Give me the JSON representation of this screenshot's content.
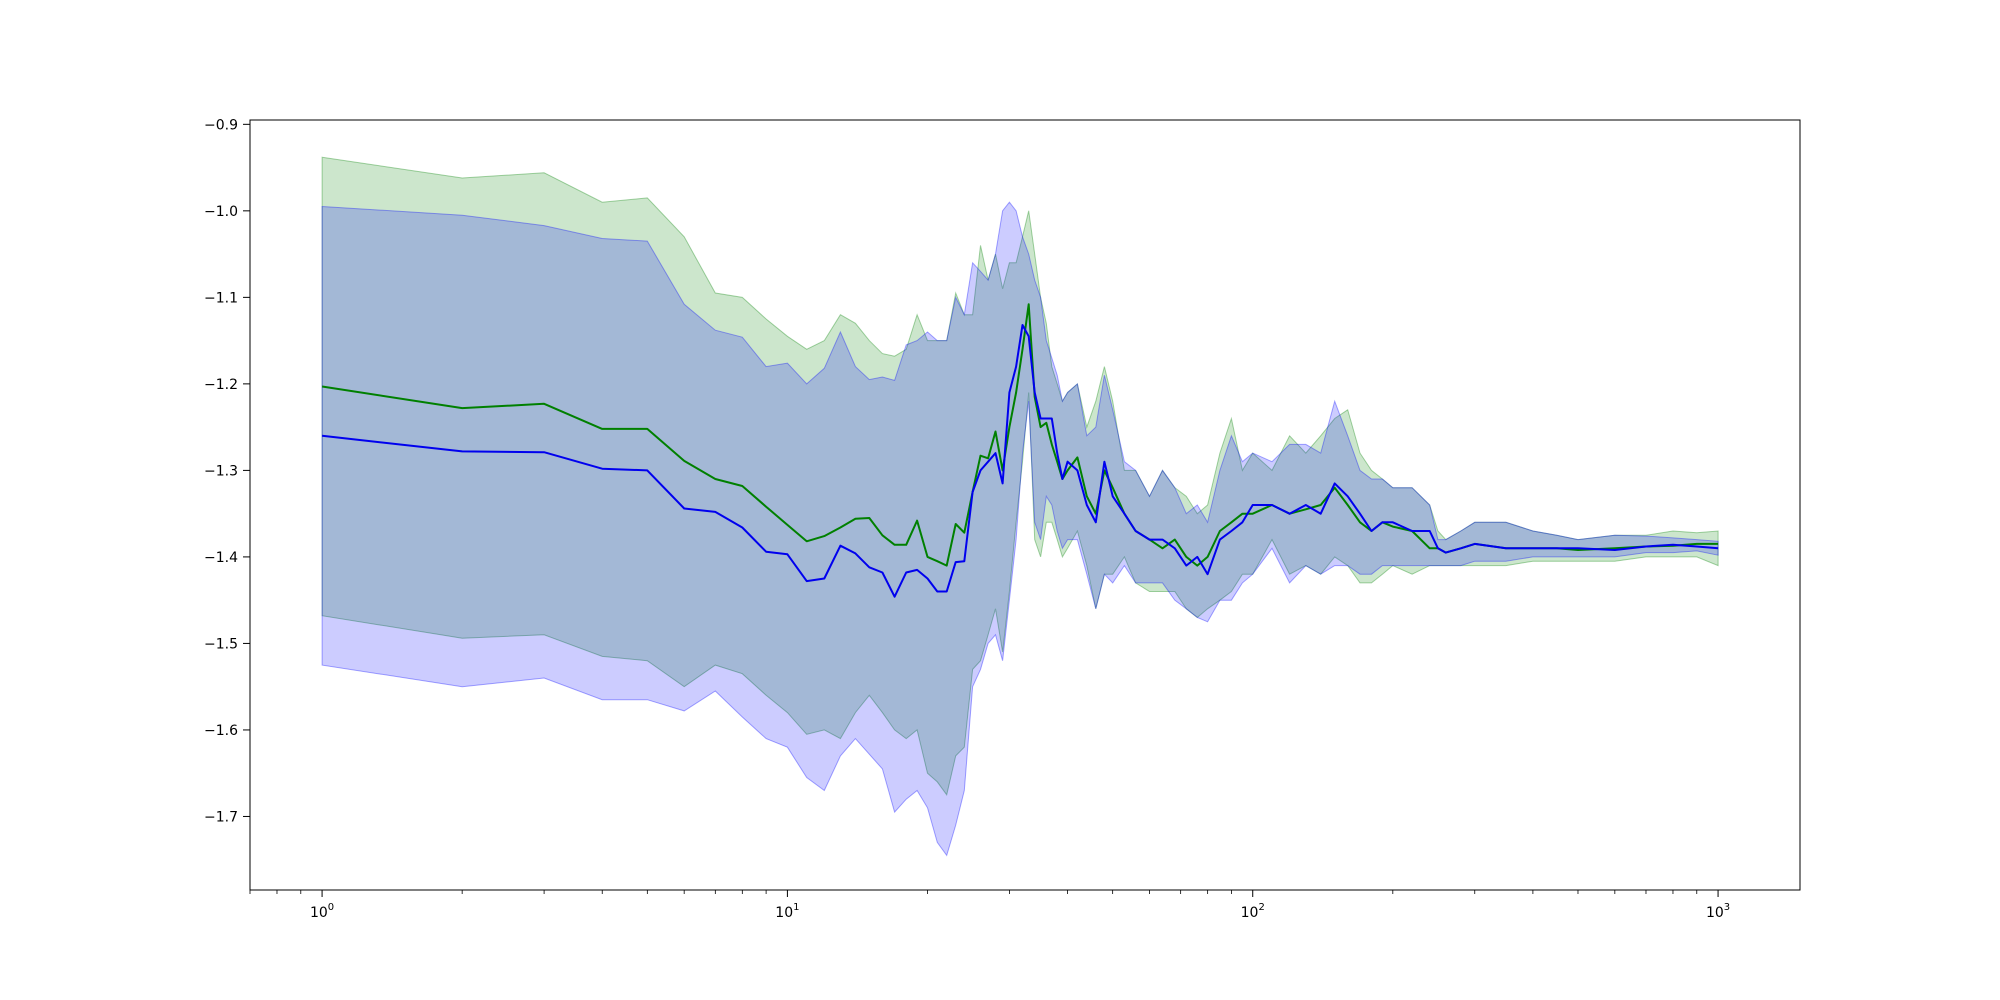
{
  "chart_data": {
    "type": "line",
    "title": "",
    "xlabel": "",
    "ylabel": "",
    "xscale": "log",
    "xlim": [
      0.7,
      1500
    ],
    "ylim": [
      -1.785,
      -0.895
    ],
    "grid": false,
    "legend": "none",
    "x_ticks": [
      {
        "value": 1,
        "base": "10",
        "exp": "0"
      },
      {
        "value": 10,
        "base": "10",
        "exp": "1"
      },
      {
        "value": 100,
        "base": "10",
        "exp": "2"
      },
      {
        "value": 1000,
        "base": "10",
        "exp": "3"
      }
    ],
    "y_ticks": [
      {
        "value": -0.9,
        "label": "−0.9"
      },
      {
        "value": -1.0,
        "label": "−1.0"
      },
      {
        "value": -1.1,
        "label": "−1.1"
      },
      {
        "value": -1.2,
        "label": "−1.2"
      },
      {
        "value": -1.3,
        "label": "−1.3"
      },
      {
        "value": -1.4,
        "label": "−1.4"
      },
      {
        "value": -1.5,
        "label": "−1.5"
      },
      {
        "value": -1.6,
        "label": "−1.6"
      },
      {
        "value": -1.7,
        "label": "−1.7"
      }
    ],
    "series": [
      {
        "color": "#008000",
        "band_color": "#008000",
        "band_opacity": 0.2,
        "x": [
          1,
          2,
          3,
          4,
          5,
          6,
          7,
          8,
          9,
          10,
          11,
          12,
          13,
          14,
          15,
          16,
          17,
          18,
          19,
          20,
          21,
          22,
          23,
          24,
          25,
          26,
          27,
          28,
          29,
          30,
          31,
          32,
          33,
          34,
          35,
          36,
          37,
          38,
          39,
          40,
          42,
          44,
          46,
          48,
          50,
          53,
          56,
          60,
          64,
          68,
          72,
          76,
          80,
          85,
          90,
          95,
          100,
          110,
          120,
          130,
          140,
          150,
          160,
          170,
          180,
          190,
          200,
          220,
          240,
          250,
          260,
          280,
          300,
          350,
          400,
          450,
          500,
          600,
          700,
          800,
          900,
          1000
        ],
        "y": [
          -1.203,
          -1.228,
          -1.223,
          -1.252,
          -1.252,
          -1.289,
          -1.31,
          -1.318,
          -1.342,
          -1.363,
          -1.382,
          -1.376,
          -1.366,
          -1.356,
          -1.355,
          -1.375,
          -1.386,
          -1.386,
          -1.358,
          -1.4,
          -1.405,
          -1.41,
          -1.362,
          -1.372,
          -1.325,
          -1.283,
          -1.286,
          -1.255,
          -1.3,
          -1.25,
          -1.21,
          -1.16,
          -1.108,
          -1.215,
          -1.25,
          -1.245,
          -1.27,
          -1.29,
          -1.31,
          -1.3,
          -1.285,
          -1.33,
          -1.35,
          -1.3,
          -1.32,
          -1.35,
          -1.37,
          -1.38,
          -1.39,
          -1.38,
          -1.4,
          -1.41,
          -1.4,
          -1.37,
          -1.36,
          -1.35,
          -1.35,
          -1.34,
          -1.35,
          -1.345,
          -1.34,
          -1.32,
          -1.34,
          -1.36,
          -1.37,
          -1.36,
          -1.365,
          -1.37,
          -1.39,
          -1.39,
          -1.395,
          -1.39,
          -1.385,
          -1.39,
          -1.39,
          -1.39,
          -1.392,
          -1.39,
          -1.388,
          -1.387,
          -1.385,
          -1.385
        ],
        "upper": [
          -0.938,
          -0.962,
          -0.956,
          -0.99,
          -0.985,
          -1.03,
          -1.095,
          -1.1,
          -1.125,
          -1.145,
          -1.16,
          -1.15,
          -1.12,
          -1.13,
          -1.15,
          -1.165,
          -1.168,
          -1.16,
          -1.12,
          -1.15,
          -1.15,
          -1.15,
          -1.095,
          -1.12,
          -1.12,
          -1.04,
          -1.08,
          -1.05,
          -1.09,
          -1.06,
          -1.06,
          -1.03,
          -1.0,
          -1.05,
          -1.1,
          -1.13,
          -1.18,
          -1.2,
          -1.22,
          -1.21,
          -1.2,
          -1.25,
          -1.22,
          -1.18,
          -1.22,
          -1.3,
          -1.3,
          -1.33,
          -1.3,
          -1.32,
          -1.33,
          -1.35,
          -1.34,
          -1.28,
          -1.24,
          -1.3,
          -1.28,
          -1.3,
          -1.26,
          -1.28,
          -1.26,
          -1.24,
          -1.23,
          -1.28,
          -1.3,
          -1.31,
          -1.32,
          -1.32,
          -1.34,
          -1.37,
          -1.38,
          -1.37,
          -1.36,
          -1.36,
          -1.37,
          -1.375,
          -1.38,
          -1.375,
          -1.375,
          -1.37,
          -1.372,
          -1.37
        ],
        "lower": [
          -1.468,
          -1.494,
          -1.49,
          -1.515,
          -1.52,
          -1.55,
          -1.525,
          -1.535,
          -1.56,
          -1.58,
          -1.605,
          -1.6,
          -1.61,
          -1.58,
          -1.56,
          -1.58,
          -1.6,
          -1.61,
          -1.6,
          -1.65,
          -1.66,
          -1.675,
          -1.63,
          -1.62,
          -1.53,
          -1.52,
          -1.49,
          -1.46,
          -1.51,
          -1.44,
          -1.36,
          -1.29,
          -1.21,
          -1.38,
          -1.4,
          -1.36,
          -1.36,
          -1.38,
          -1.4,
          -1.39,
          -1.37,
          -1.41,
          -1.46,
          -1.42,
          -1.42,
          -1.4,
          -1.43,
          -1.44,
          -1.44,
          -1.44,
          -1.46,
          -1.47,
          -1.46,
          -1.45,
          -1.44,
          -1.42,
          -1.42,
          -1.38,
          -1.42,
          -1.41,
          -1.42,
          -1.4,
          -1.41,
          -1.43,
          -1.43,
          -1.42,
          -1.41,
          -1.42,
          -1.41,
          -1.41,
          -1.41,
          -1.41,
          -1.41,
          -1.41,
          -1.405,
          -1.405,
          -1.405,
          -1.405,
          -1.4,
          -1.4,
          -1.4,
          -1.41
        ]
      },
      {
        "color": "#0000ee",
        "band_color": "#0000ff",
        "band_opacity": 0.2,
        "x": [
          1,
          2,
          3,
          4,
          5,
          6,
          7,
          8,
          9,
          10,
          11,
          12,
          13,
          14,
          15,
          16,
          17,
          18,
          19,
          20,
          21,
          22,
          23,
          24,
          25,
          26,
          27,
          28,
          29,
          30,
          31,
          32,
          33,
          34,
          35,
          36,
          37,
          38,
          39,
          40,
          42,
          44,
          46,
          48,
          50,
          53,
          56,
          60,
          64,
          68,
          72,
          76,
          80,
          85,
          90,
          95,
          100,
          110,
          120,
          130,
          140,
          150,
          160,
          170,
          180,
          190,
          200,
          220,
          240,
          250,
          260,
          280,
          300,
          350,
          400,
          450,
          500,
          600,
          700,
          800,
          900,
          1000
        ],
        "y": [
          -1.26,
          -1.278,
          -1.279,
          -1.298,
          -1.3,
          -1.344,
          -1.348,
          -1.366,
          -1.394,
          -1.397,
          -1.428,
          -1.425,
          -1.387,
          -1.396,
          -1.412,
          -1.418,
          -1.446,
          -1.418,
          -1.415,
          -1.425,
          -1.44,
          -1.44,
          -1.406,
          -1.405,
          -1.325,
          -1.3,
          -1.29,
          -1.28,
          -1.315,
          -1.21,
          -1.18,
          -1.132,
          -1.145,
          -1.21,
          -1.24,
          -1.24,
          -1.24,
          -1.28,
          -1.31,
          -1.29,
          -1.3,
          -1.34,
          -1.36,
          -1.29,
          -1.33,
          -1.35,
          -1.37,
          -1.38,
          -1.38,
          -1.39,
          -1.41,
          -1.4,
          -1.42,
          -1.38,
          -1.37,
          -1.36,
          -1.34,
          -1.34,
          -1.35,
          -1.34,
          -1.35,
          -1.315,
          -1.33,
          -1.35,
          -1.37,
          -1.36,
          -1.36,
          -1.37,
          -1.37,
          -1.39,
          -1.395,
          -1.39,
          -1.385,
          -1.39,
          -1.39,
          -1.39,
          -1.39,
          -1.392,
          -1.388,
          -1.386,
          -1.388,
          -1.39
        ],
        "upper": [
          -0.995,
          -1.005,
          -1.017,
          -1.032,
          -1.035,
          -1.108,
          -1.138,
          -1.146,
          -1.18,
          -1.176,
          -1.2,
          -1.182,
          -1.14,
          -1.18,
          -1.195,
          -1.192,
          -1.196,
          -1.155,
          -1.15,
          -1.14,
          -1.15,
          -1.15,
          -1.1,
          -1.12,
          -1.06,
          -1.07,
          -1.08,
          -1.05,
          -1.0,
          -0.99,
          -1.0,
          -1.03,
          -1.05,
          -1.08,
          -1.1,
          -1.15,
          -1.17,
          -1.19,
          -1.22,
          -1.21,
          -1.2,
          -1.26,
          -1.25,
          -1.19,
          -1.23,
          -1.29,
          -1.3,
          -1.33,
          -1.3,
          -1.32,
          -1.35,
          -1.34,
          -1.36,
          -1.3,
          -1.26,
          -1.29,
          -1.28,
          -1.29,
          -1.27,
          -1.27,
          -1.28,
          -1.22,
          -1.26,
          -1.3,
          -1.31,
          -1.31,
          -1.32,
          -1.32,
          -1.34,
          -1.38,
          -1.38,
          -1.37,
          -1.36,
          -1.36,
          -1.37,
          -1.375,
          -1.38,
          -1.375,
          -1.376,
          -1.378,
          -1.38,
          -1.382
        ],
        "lower": [
          -1.525,
          -1.55,
          -1.54,
          -1.565,
          -1.565,
          -1.578,
          -1.555,
          -1.585,
          -1.61,
          -1.62,
          -1.655,
          -1.67,
          -1.63,
          -1.61,
          -1.628,
          -1.645,
          -1.695,
          -1.68,
          -1.67,
          -1.69,
          -1.73,
          -1.745,
          -1.71,
          -1.67,
          -1.55,
          -1.53,
          -1.5,
          -1.49,
          -1.52,
          -1.45,
          -1.38,
          -1.28,
          -1.22,
          -1.36,
          -1.38,
          -1.33,
          -1.34,
          -1.37,
          -1.39,
          -1.38,
          -1.38,
          -1.42,
          -1.46,
          -1.42,
          -1.43,
          -1.41,
          -1.43,
          -1.43,
          -1.43,
          -1.45,
          -1.46,
          -1.47,
          -1.475,
          -1.45,
          -1.45,
          -1.43,
          -1.42,
          -1.39,
          -1.43,
          -1.41,
          -1.42,
          -1.41,
          -1.41,
          -1.42,
          -1.42,
          -1.41,
          -1.41,
          -1.41,
          -1.41,
          -1.41,
          -1.41,
          -1.41,
          -1.405,
          -1.405,
          -1.4,
          -1.4,
          -1.4,
          -1.4,
          -1.395,
          -1.395,
          -1.393,
          -1.398
        ]
      }
    ]
  }
}
